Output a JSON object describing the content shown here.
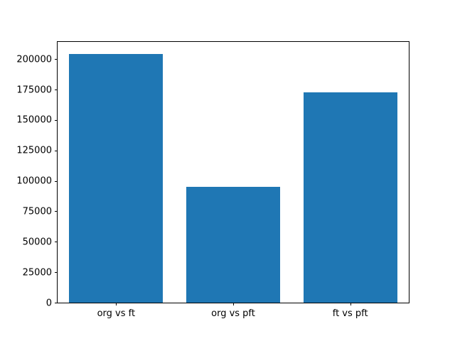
{
  "chart_data": {
    "type": "bar",
    "title": "",
    "xlabel": "",
    "ylabel": "",
    "categories": [
      "org vs ft",
      "org vs pft",
      "ft vs pft"
    ],
    "values": [
      204000,
      95000,
      173000
    ],
    "ylim": [
      0,
      214200
    ],
    "yticks": [
      0,
      25000,
      50000,
      75000,
      100000,
      125000,
      150000,
      175000,
      200000
    ],
    "bar_color": "#1f77b4",
    "bar_width_fraction": 0.8,
    "grid": false,
    "legend": "none",
    "background_color": "#ffffff",
    "axis_color": "#000000"
  }
}
